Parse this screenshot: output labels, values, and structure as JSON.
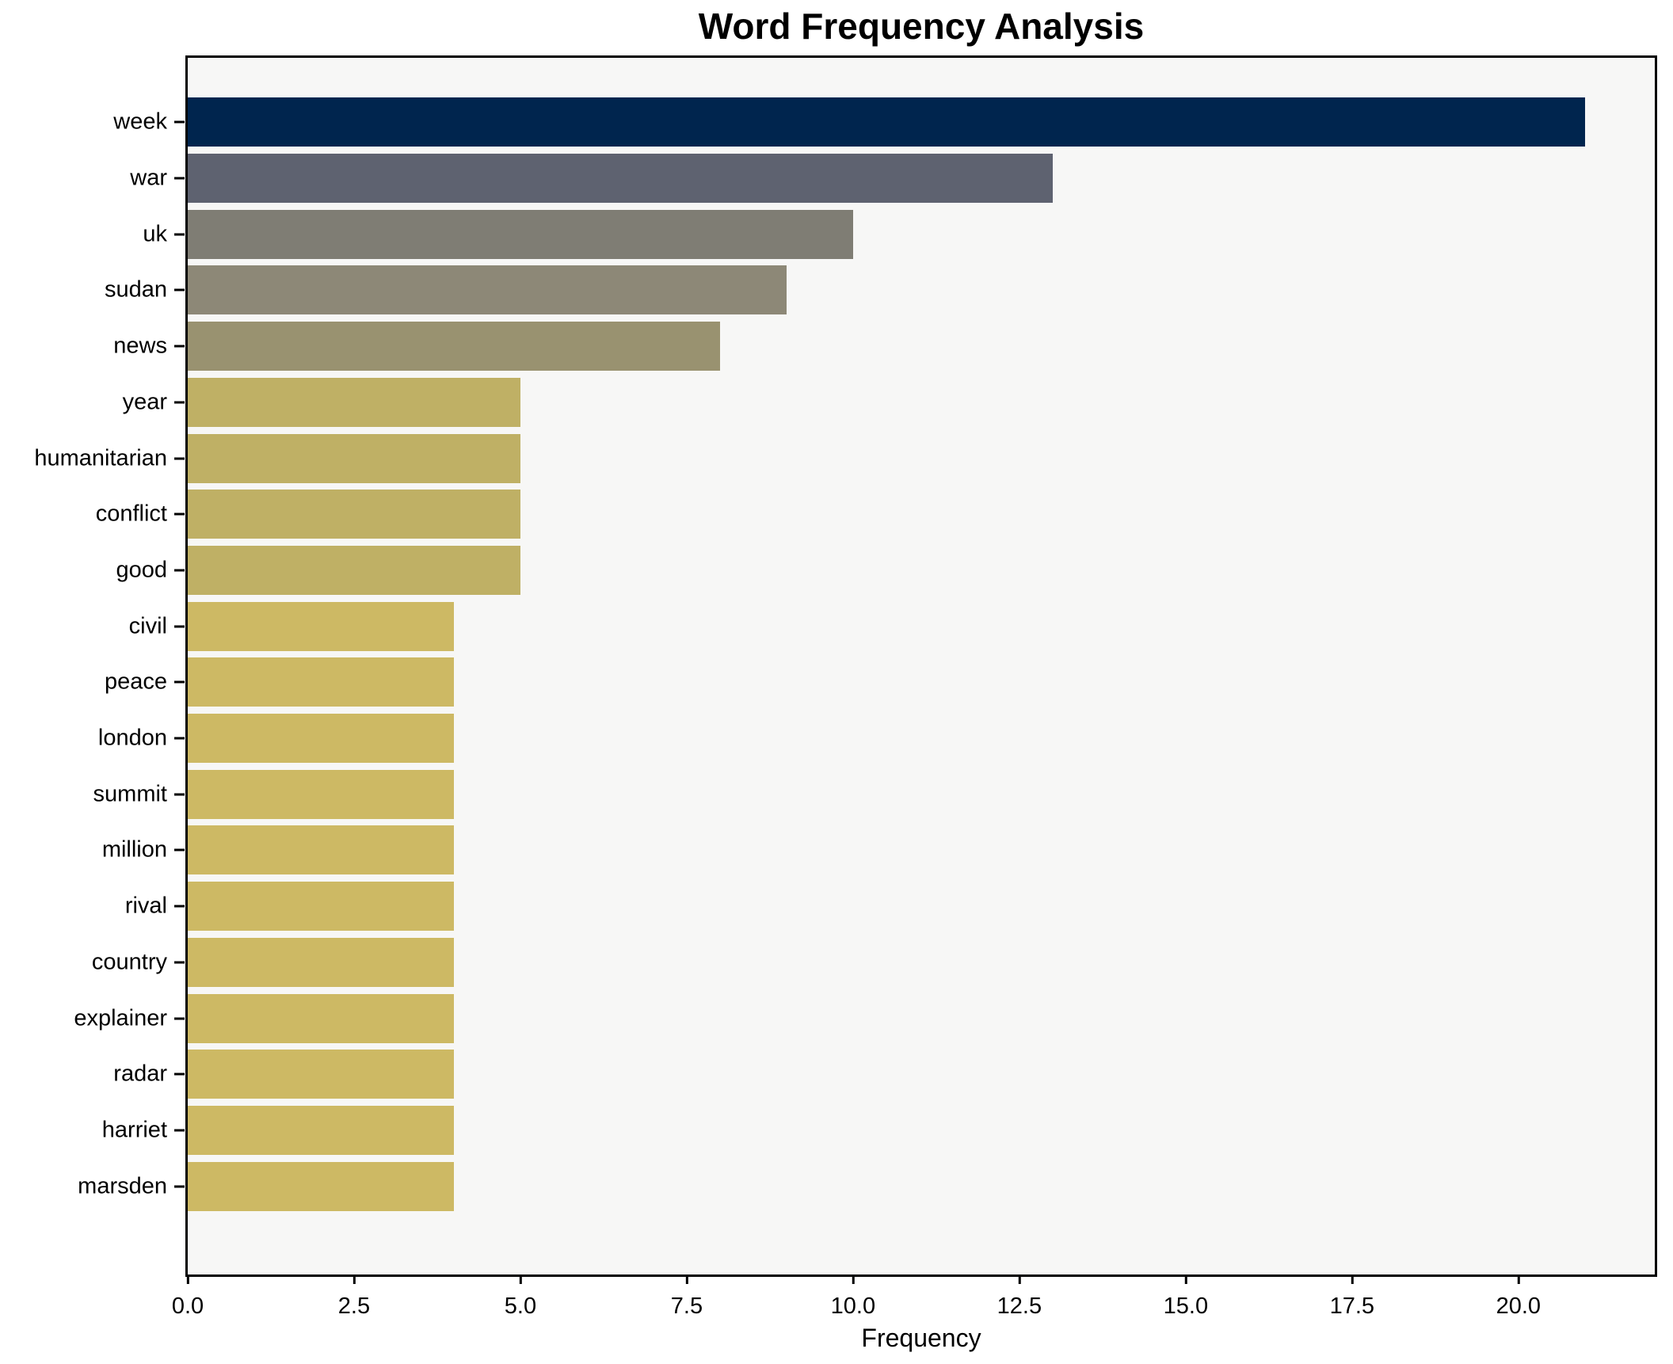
{
  "title": "Word Frequency Analysis",
  "chart_data": {
    "type": "bar",
    "orientation": "horizontal",
    "title": "Word Frequency Analysis",
    "xlabel": "Frequency",
    "ylabel": "",
    "categories": [
      "week",
      "war",
      "uk",
      "sudan",
      "news",
      "year",
      "humanitarian",
      "conflict",
      "good",
      "civil",
      "peace",
      "london",
      "summit",
      "million",
      "rival",
      "country",
      "explainer",
      "radar",
      "harriet",
      "marsden"
    ],
    "values": [
      21,
      13,
      10,
      9,
      8,
      5,
      5,
      5,
      5,
      4,
      4,
      4,
      4,
      4,
      4,
      4,
      4,
      4,
      4,
      4
    ],
    "bar_colors": [
      "#00254e",
      "#5e6270",
      "#7f7d74",
      "#8d8877",
      "#999270",
      "#bfb065",
      "#bfb065",
      "#bfb065",
      "#bfb065",
      "#cdb964",
      "#cdb964",
      "#cdb964",
      "#cdb964",
      "#cdb964",
      "#cdb964",
      "#cdb964",
      "#cdb964",
      "#cdb964",
      "#cdb964",
      "#cdb964"
    ],
    "xlim": [
      0,
      22.05
    ],
    "x_ticks": [
      0.0,
      2.5,
      5.0,
      7.5,
      10.0,
      12.5,
      15.0,
      17.5,
      20.0
    ],
    "x_tick_labels": [
      "0.0",
      "2.5",
      "5.0",
      "7.5",
      "10.0",
      "12.5",
      "15.0",
      "17.5",
      "20.0"
    ],
    "grid": false,
    "legend": null,
    "plot_bg": "#f7f7f6",
    "figure_bg": "#ffffff",
    "spine_color": "#000000"
  }
}
